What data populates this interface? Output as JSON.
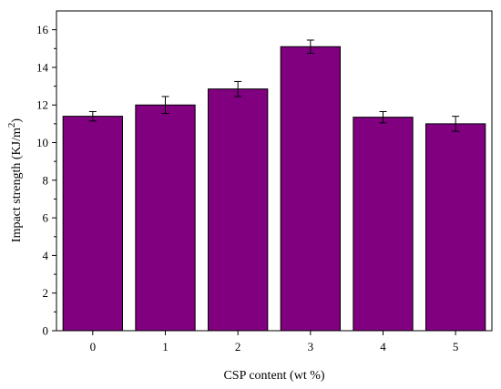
{
  "chart_data": {
    "type": "bar",
    "title": "",
    "xlabel": "CSP content (wt %)",
    "ylabel_main": "Impact strength (KJ/m",
    "ylabel_sup": "2",
    "ylabel_close": ")",
    "categories": [
      "0",
      "1",
      "2",
      "3",
      "4",
      "5"
    ],
    "values": [
      11.4,
      12.0,
      12.85,
      15.1,
      11.35,
      11.0
    ],
    "errors": [
      0.25,
      0.45,
      0.4,
      0.35,
      0.3,
      0.4
    ],
    "ylim": [
      0,
      17
    ],
    "yticks": [
      0,
      2,
      4,
      6,
      8,
      10,
      12,
      14,
      16
    ],
    "bar_color": "#800080",
    "grid": false,
    "legend": "none"
  }
}
